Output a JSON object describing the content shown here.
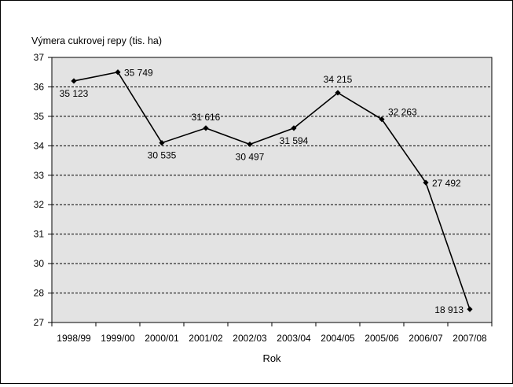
{
  "chart_data": {
    "type": "line",
    "title": "Výmera cukrovej repy (tis. ha)",
    "xlabel": "Rok",
    "ylabel": "",
    "categories": [
      "1998/99",
      "1999/00",
      "2000/01",
      "2001/02",
      "2002/03",
      "2003/04",
      "2004/05",
      "2005/06",
      "2006/07",
      "2007/08"
    ],
    "y_ticks": [
      "27",
      "28",
      "30",
      "31",
      "32",
      "33",
      "34",
      "35",
      "36",
      "37"
    ],
    "point_positions": [
      36.2,
      36.5,
      34.1,
      34.6,
      34.05,
      34.6,
      35.8,
      34.9,
      32.75,
      27.45
    ],
    "data_labels": [
      "35 123",
      "35 749",
      "30 535",
      "31 616",
      "30 497",
      "31 594",
      "34 215",
      "32 263",
      "27 492",
      "18 913"
    ],
    "grid": true,
    "legend": "none",
    "colors": {
      "plot_background": "#e3e3e3",
      "line": "#000000",
      "grid": "#000000"
    }
  }
}
